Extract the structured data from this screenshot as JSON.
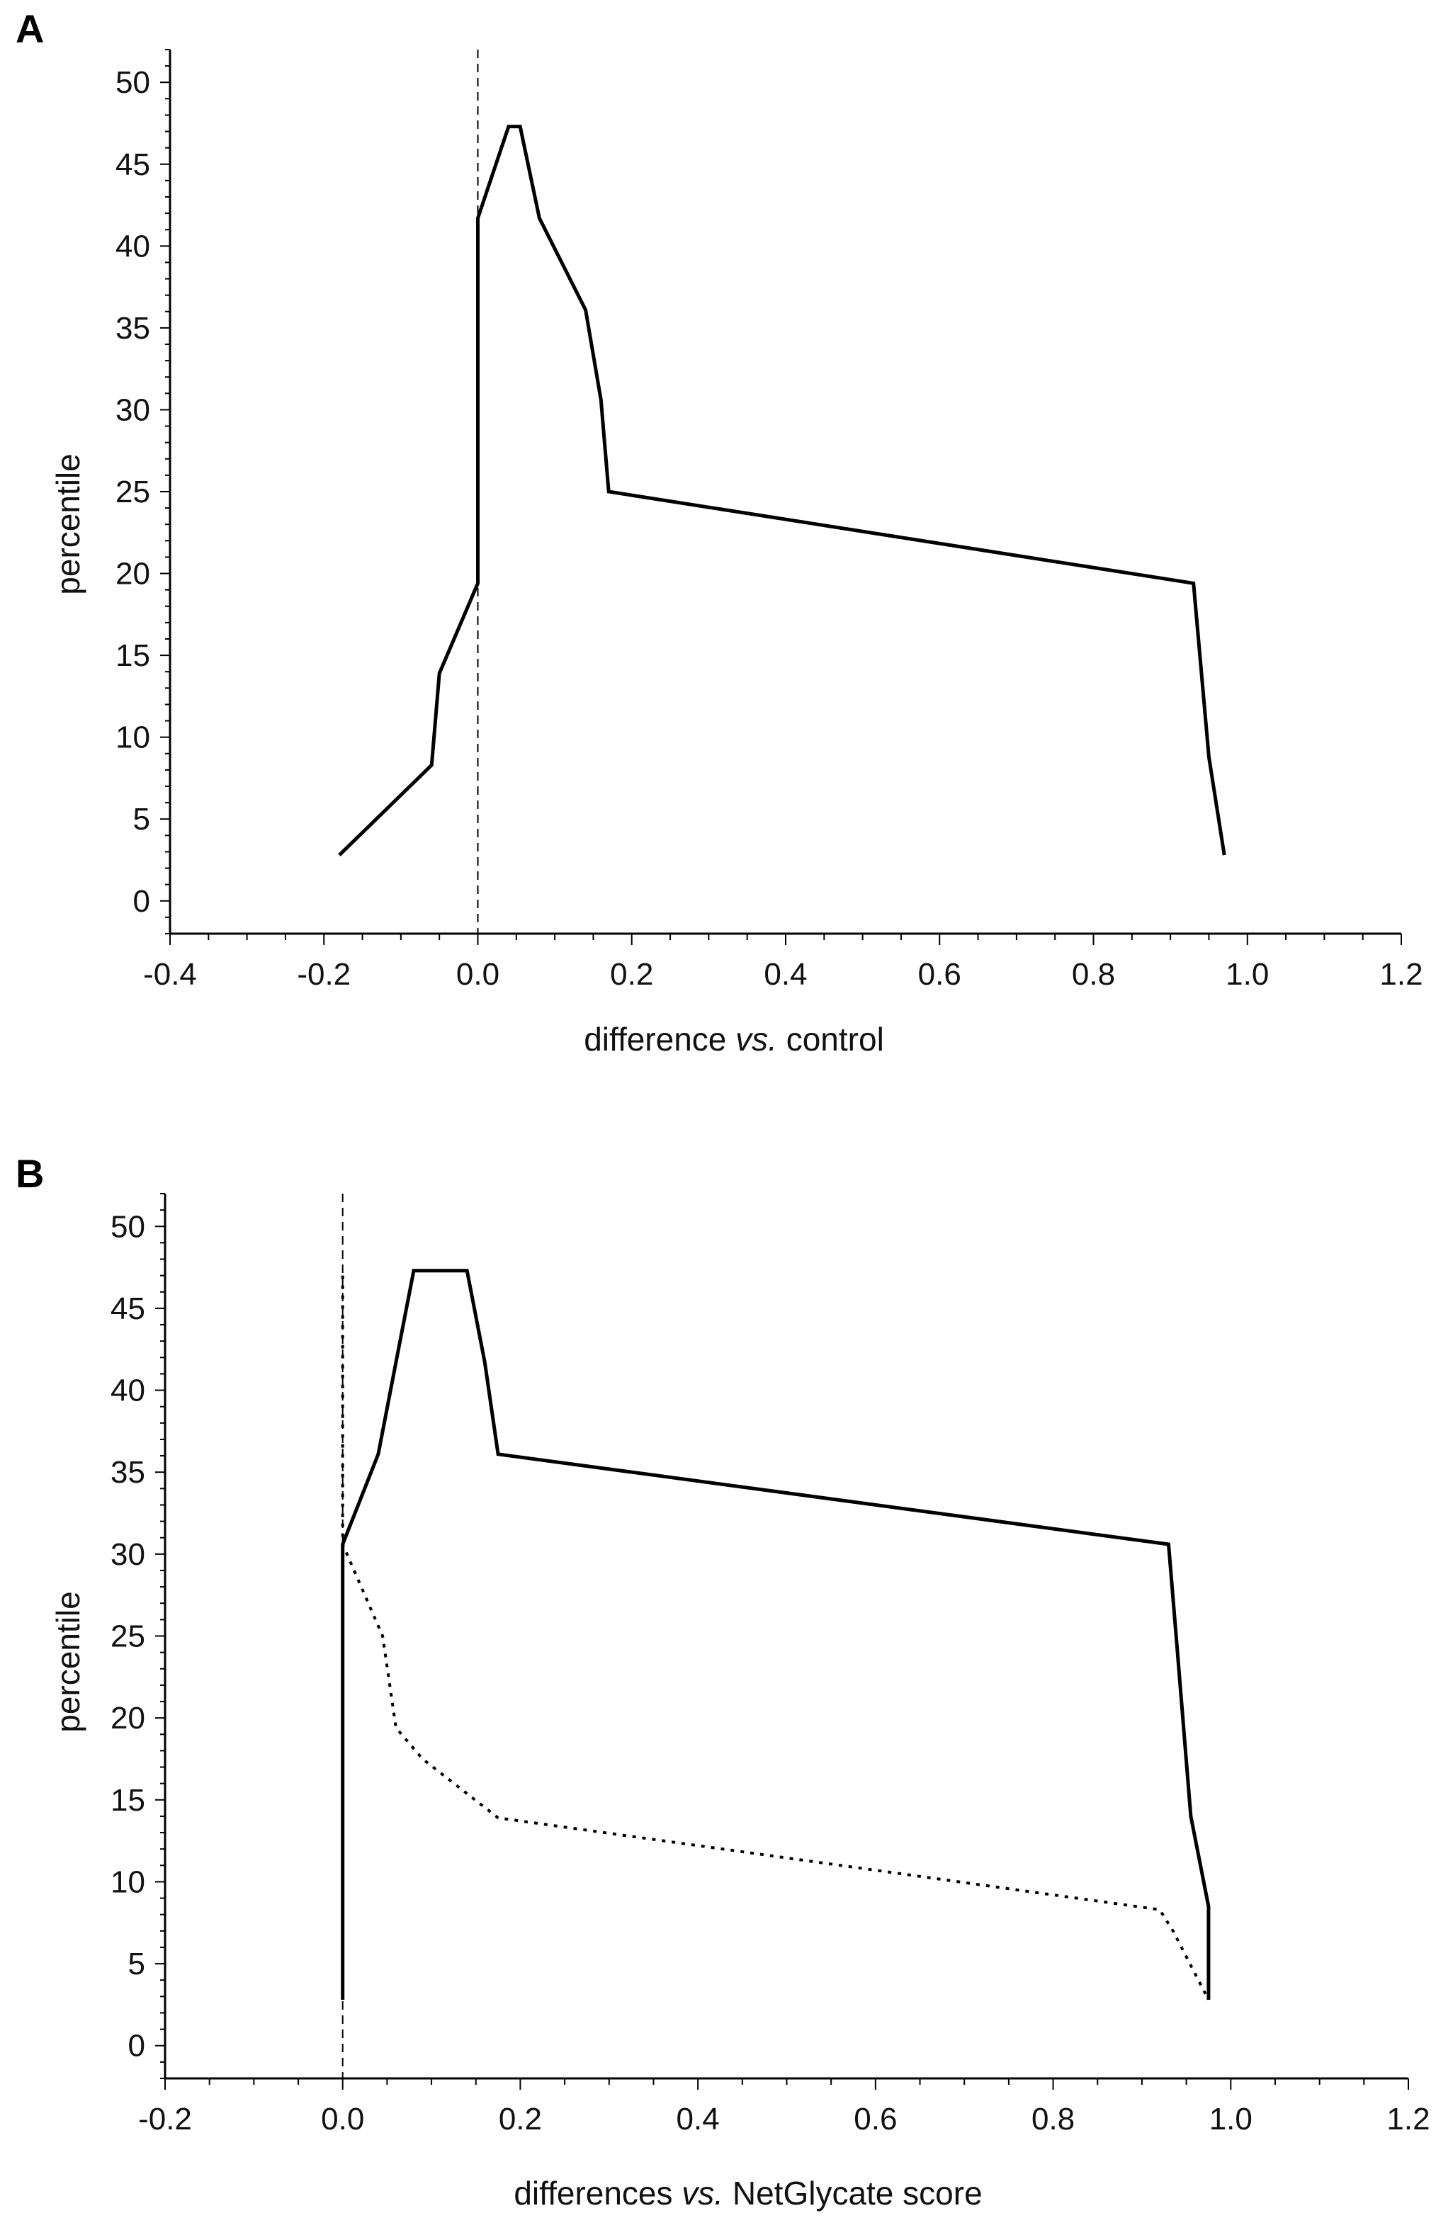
{
  "chart_data": [
    {
      "type": "line",
      "panel_label": "A",
      "title": "",
      "xlabel_parts": [
        "difference ",
        "vs.",
        " control"
      ],
      "ylabel": "percentile",
      "xlim": [
        -0.4,
        1.2
      ],
      "ylim": [
        -2,
        52
      ],
      "x_ticks": [
        -0.4,
        -0.2,
        0.0,
        0.2,
        0.4,
        0.6,
        0.8,
        1.0,
        1.2
      ],
      "x_tick_labels": [
        "-0.4",
        "-0.2",
        "0.0",
        "0.2",
        "0.4",
        "0.6",
        "0.8",
        "1.0",
        "1.2"
      ],
      "y_ticks": [
        0,
        5,
        10,
        15,
        20,
        25,
        30,
        35,
        40,
        45,
        50
      ],
      "y_tick_labels": [
        "0",
        "5",
        "10",
        "15",
        "20",
        "25",
        "30",
        "35",
        "40",
        "45",
        "50"
      ],
      "reference_line_x": 0.0,
      "series": [
        {
          "name": "difference vs. control",
          "style": "solid",
          "x": [
            -0.18,
            -0.06,
            -0.05,
            0.0,
            0.0,
            0.04,
            0.055,
            0.08,
            0.14,
            0.16,
            0.17,
            0.93,
            0.95,
            0.97
          ],
          "y": [
            2.8,
            8.3,
            13.9,
            19.4,
            41.7,
            47.3,
            47.3,
            41.7,
            36.1,
            30.6,
            25.0,
            19.4,
            8.8,
            2.8
          ]
        }
      ]
    },
    {
      "type": "line",
      "panel_label": "B",
      "title": "",
      "xlabel_parts": [
        "differences ",
        "vs.",
        " NetGlycate score"
      ],
      "ylabel": "percentile",
      "xlim": [
        -0.2,
        1.2
      ],
      "ylim": [
        -2,
        52
      ],
      "x_ticks": [
        -0.2,
        0.0,
        0.2,
        0.4,
        0.6,
        0.8,
        1.0,
        1.2
      ],
      "x_tick_labels": [
        "-0.2",
        "0.0",
        "0.2",
        "0.4",
        "0.6",
        "0.8",
        "1.0",
        "1.2"
      ],
      "y_ticks": [
        0,
        5,
        10,
        15,
        20,
        25,
        30,
        35,
        40,
        45,
        50
      ],
      "y_tick_labels": [
        "0",
        "5",
        "10",
        "15",
        "20",
        "25",
        "30",
        "35",
        "40",
        "45",
        "50"
      ],
      "reference_line_x": 0.0,
      "series": [
        {
          "name": "solid",
          "style": "solid",
          "x": [
            0.0,
            0.0,
            0.04,
            0.06,
            0.08,
            0.14,
            0.16,
            0.175,
            0.93,
            0.94,
            0.955,
            0.975,
            0.975
          ],
          "y": [
            2.8,
            30.6,
            36.1,
            41.7,
            47.3,
            47.3,
            41.7,
            36.1,
            30.6,
            24.0,
            14.0,
            8.5,
            2.8
          ]
        },
        {
          "name": "dotted",
          "style": "dotted",
          "x": [
            0.0,
            0.0,
            0.045,
            0.06,
            0.09,
            0.175,
            0.92,
            0.935,
            0.975
          ],
          "y": [
            47.0,
            30.6,
            25.0,
            19.4,
            17.5,
            13.9,
            8.3,
            7.0,
            2.8
          ]
        }
      ]
    }
  ]
}
